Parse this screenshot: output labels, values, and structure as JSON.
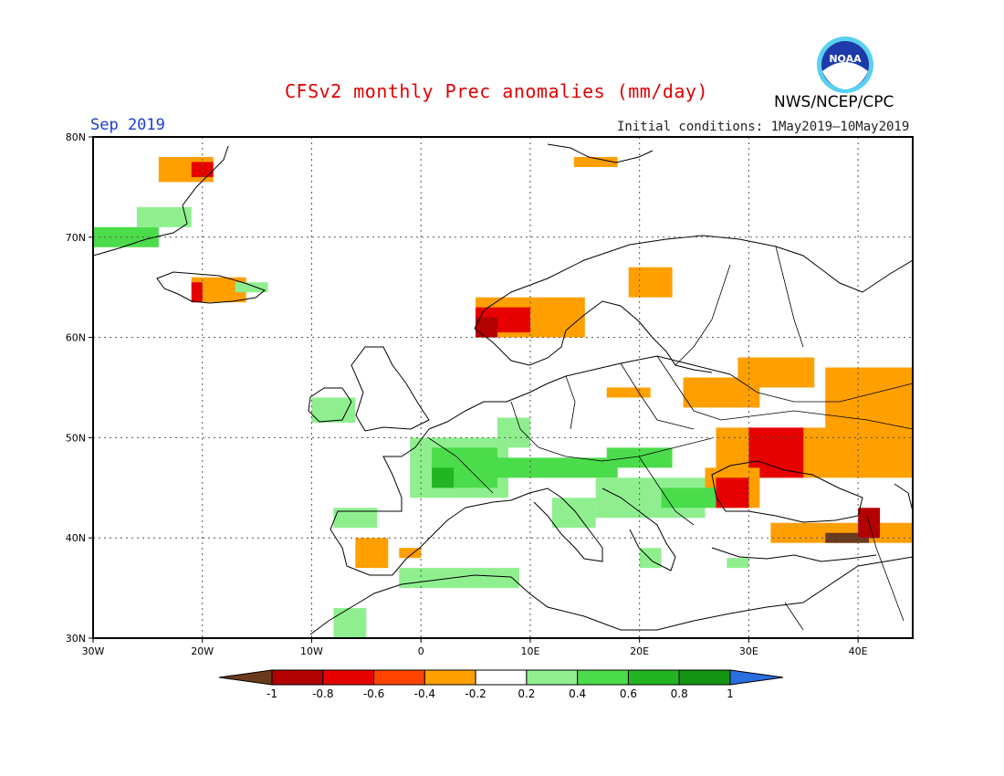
{
  "title": "CFSv2 monthly Prec anomalies (mm/day)",
  "agency": "NWS/NCEP/CPC",
  "logo_text": "NOAA",
  "month": "Sep 2019",
  "initial_conditions": "Initial conditions: 1May2019–10May2019",
  "map": {
    "lon_range": [
      -30,
      45
    ],
    "lat_range": [
      30,
      80
    ],
    "lon_ticks": [
      {
        "value": -30,
        "label": "30W"
      },
      {
        "value": -20,
        "label": "20W"
      },
      {
        "value": -10,
        "label": "10W"
      },
      {
        "value": 0,
        "label": "0"
      },
      {
        "value": 10,
        "label": "10E"
      },
      {
        "value": 20,
        "label": "20E"
      },
      {
        "value": 30,
        "label": "30E"
      },
      {
        "value": 40,
        "label": "40E"
      }
    ],
    "lat_ticks": [
      {
        "value": 80,
        "label": "80N"
      },
      {
        "value": 70,
        "label": "70N"
      },
      {
        "value": 60,
        "label": "60N"
      },
      {
        "value": 50,
        "label": "50N"
      },
      {
        "value": 40,
        "label": "40N"
      },
      {
        "value": 30,
        "label": "30N"
      }
    ],
    "grid": "dotted"
  },
  "colorbar": {
    "labels": [
      "-1",
      "-0.8",
      "-0.6",
      "-0.4",
      "-0.2",
      "0.2",
      "0.4",
      "0.6",
      "0.8",
      "1"
    ],
    "colors": [
      "#6b3a1e",
      "#b30000",
      "#e60000",
      "#ff4400",
      "#ff9f00",
      "#ffffff",
      "#8fef8f",
      "#4bdc4b",
      "#22b422",
      "#129412",
      "#2a6fe0"
    ]
  },
  "anomalies": [
    {
      "name": "greenland-east-dry",
      "level": "-0.4",
      "lon": [
        -24,
        -19
      ],
      "lat": [
        75.5,
        78
      ]
    },
    {
      "name": "greenland-east-very-dry",
      "level": "-0.6",
      "lon": [
        -21,
        -19
      ],
      "lat": [
        76,
        77.5
      ]
    },
    {
      "name": "greenland-south-wet",
      "level": "0.4",
      "lon": [
        -30,
        -24
      ],
      "lat": [
        69,
        71
      ]
    },
    {
      "name": "greenland-south-wet-2",
      "level": "0.2",
      "lon": [
        -26,
        -21
      ],
      "lat": [
        71,
        73
      ]
    },
    {
      "name": "iceland-dry",
      "level": "-0.4",
      "lon": [
        -21,
        -16
      ],
      "lat": [
        63.5,
        66
      ]
    },
    {
      "name": "iceland-very-dry",
      "level": "-0.6",
      "lon": [
        -21,
        -20
      ],
      "lat": [
        63.5,
        65.5
      ]
    },
    {
      "name": "iceland-wet",
      "level": "0.2",
      "lon": [
        -17,
        -14
      ],
      "lat": [
        64.5,
        65.5
      ]
    },
    {
      "name": "svalbard-dry",
      "level": "-0.4",
      "lon": [
        14,
        18
      ],
      "lat": [
        77,
        78
      ]
    },
    {
      "name": "norway-dry",
      "level": "-0.4",
      "lon": [
        5,
        15
      ],
      "lat": [
        60,
        64
      ]
    },
    {
      "name": "norway-very-dry",
      "level": "-0.6",
      "lon": [
        5,
        10
      ],
      "lat": [
        60.5,
        63
      ]
    },
    {
      "name": "norway-extreme-dry",
      "level": "-0.8",
      "lon": [
        5,
        7
      ],
      "lat": [
        60,
        62
      ]
    },
    {
      "name": "finland-dry",
      "level": "-0.4",
      "lon": [
        19,
        23
      ],
      "lat": [
        64,
        67
      ]
    },
    {
      "name": "russia-dry-1",
      "level": "-0.4",
      "lon": [
        24,
        31
      ],
      "lat": [
        53,
        56
      ]
    },
    {
      "name": "russia-dry-2",
      "level": "-0.4",
      "lon": [
        29,
        36
      ],
      "lat": [
        55,
        58
      ]
    },
    {
      "name": "russia-dry-3",
      "level": "-0.4",
      "lon": [
        37,
        45
      ],
      "lat": [
        48,
        57
      ]
    },
    {
      "name": "ukraine-dry",
      "level": "-0.4",
      "lon": [
        27,
        45
      ],
      "lat": [
        46,
        51
      ]
    },
    {
      "name": "ukraine-very-dry",
      "level": "-0.6",
      "lon": [
        30,
        35
      ],
      "lat": [
        46,
        51
      ]
    },
    {
      "name": "black-sea-dry",
      "level": "-0.4",
      "lon": [
        26,
        31
      ],
      "lat": [
        43,
        47
      ]
    },
    {
      "name": "black-sea-very-dry",
      "level": "-0.6",
      "lon": [
        27,
        30
      ],
      "lat": [
        43,
        46
      ]
    },
    {
      "name": "poland-dry",
      "level": "-0.4",
      "lon": [
        17,
        21
      ],
      "lat": [
        54,
        55
      ]
    },
    {
      "name": "turkey-extreme-dry",
      "level": "-0.8",
      "lon": [
        33,
        41
      ],
      "lat": [
        40,
        41
      ]
    },
    {
      "name": "turkey-dry",
      "level": "-0.4",
      "lon": [
        32,
        45
      ],
      "lat": [
        39.5,
        41.5
      ]
    },
    {
      "name": "caucasus-extreme-dry",
      "level": "-1",
      "lon": [
        37,
        41
      ],
      "lat": [
        39.5,
        40.5
      ]
    },
    {
      "name": "caucasus-very-dry",
      "level": "-0.8",
      "lon": [
        40,
        42
      ],
      "lat": [
        40,
        43
      ]
    },
    {
      "name": "spain-dry",
      "level": "-0.4",
      "lon": [
        -6,
        -3
      ],
      "lat": [
        37,
        40
      ]
    },
    {
      "name": "spain-dry-2",
      "level": "-0.4",
      "lon": [
        -2,
        0
      ],
      "lat": [
        38,
        39
      ]
    },
    {
      "name": "ireland-wet",
      "level": "0.2",
      "lon": [
        -10,
        -6
      ],
      "lat": [
        51.5,
        54
      ]
    },
    {
      "name": "france-wet",
      "level": "0.2",
      "lon": [
        -1,
        8
      ],
      "lat": [
        44,
        50
      ]
    },
    {
      "name": "france-wet-2",
      "level": "0.4",
      "lon": [
        1,
        7
      ],
      "lat": [
        45,
        49
      ]
    },
    {
      "name": "france-wet-3",
      "level": "0.6",
      "lon": [
        1,
        3
      ],
      "lat": [
        45,
        47
      ]
    },
    {
      "name": "germany-wet",
      "level": "0.2",
      "lon": [
        7,
        10
      ],
      "lat": [
        49,
        52
      ]
    },
    {
      "name": "alps-wet",
      "level": "0.4",
      "lon": [
        6,
        18
      ],
      "lat": [
        46,
        48
      ]
    },
    {
      "name": "hungary-wet",
      "level": "0.4",
      "lon": [
        17,
        23
      ],
      "lat": [
        47,
        49
      ]
    },
    {
      "name": "balkans-wet",
      "level": "0.2",
      "lon": [
        16,
        26
      ],
      "lat": [
        42,
        46
      ]
    },
    {
      "name": "italy-wet",
      "level": "0.2",
      "lon": [
        12,
        16
      ],
      "lat": [
        41,
        44
      ]
    },
    {
      "name": "bulgaria-wet",
      "level": "0.4",
      "lon": [
        22,
        27
      ],
      "lat": [
        43,
        45
      ]
    },
    {
      "name": "spain-north-wet",
      "level": "0.2",
      "lon": [
        -8,
        -4
      ],
      "lat": [
        41,
        43
      ]
    },
    {
      "name": "maghreb-wet",
      "level": "0.2",
      "lon": [
        -2,
        9
      ],
      "lat": [
        35,
        37
      ]
    },
    {
      "name": "morocco-wet",
      "level": "0.2",
      "lon": [
        -8,
        -5
      ],
      "lat": [
        30,
        33
      ]
    },
    {
      "name": "greece-wet",
      "level": "0.2",
      "lon": [
        20,
        22
      ],
      "lat": [
        37,
        39
      ]
    },
    {
      "name": "turkey-wet",
      "level": "0.2",
      "lon": [
        28,
        30
      ],
      "lat": [
        37,
        38
      ]
    }
  ]
}
